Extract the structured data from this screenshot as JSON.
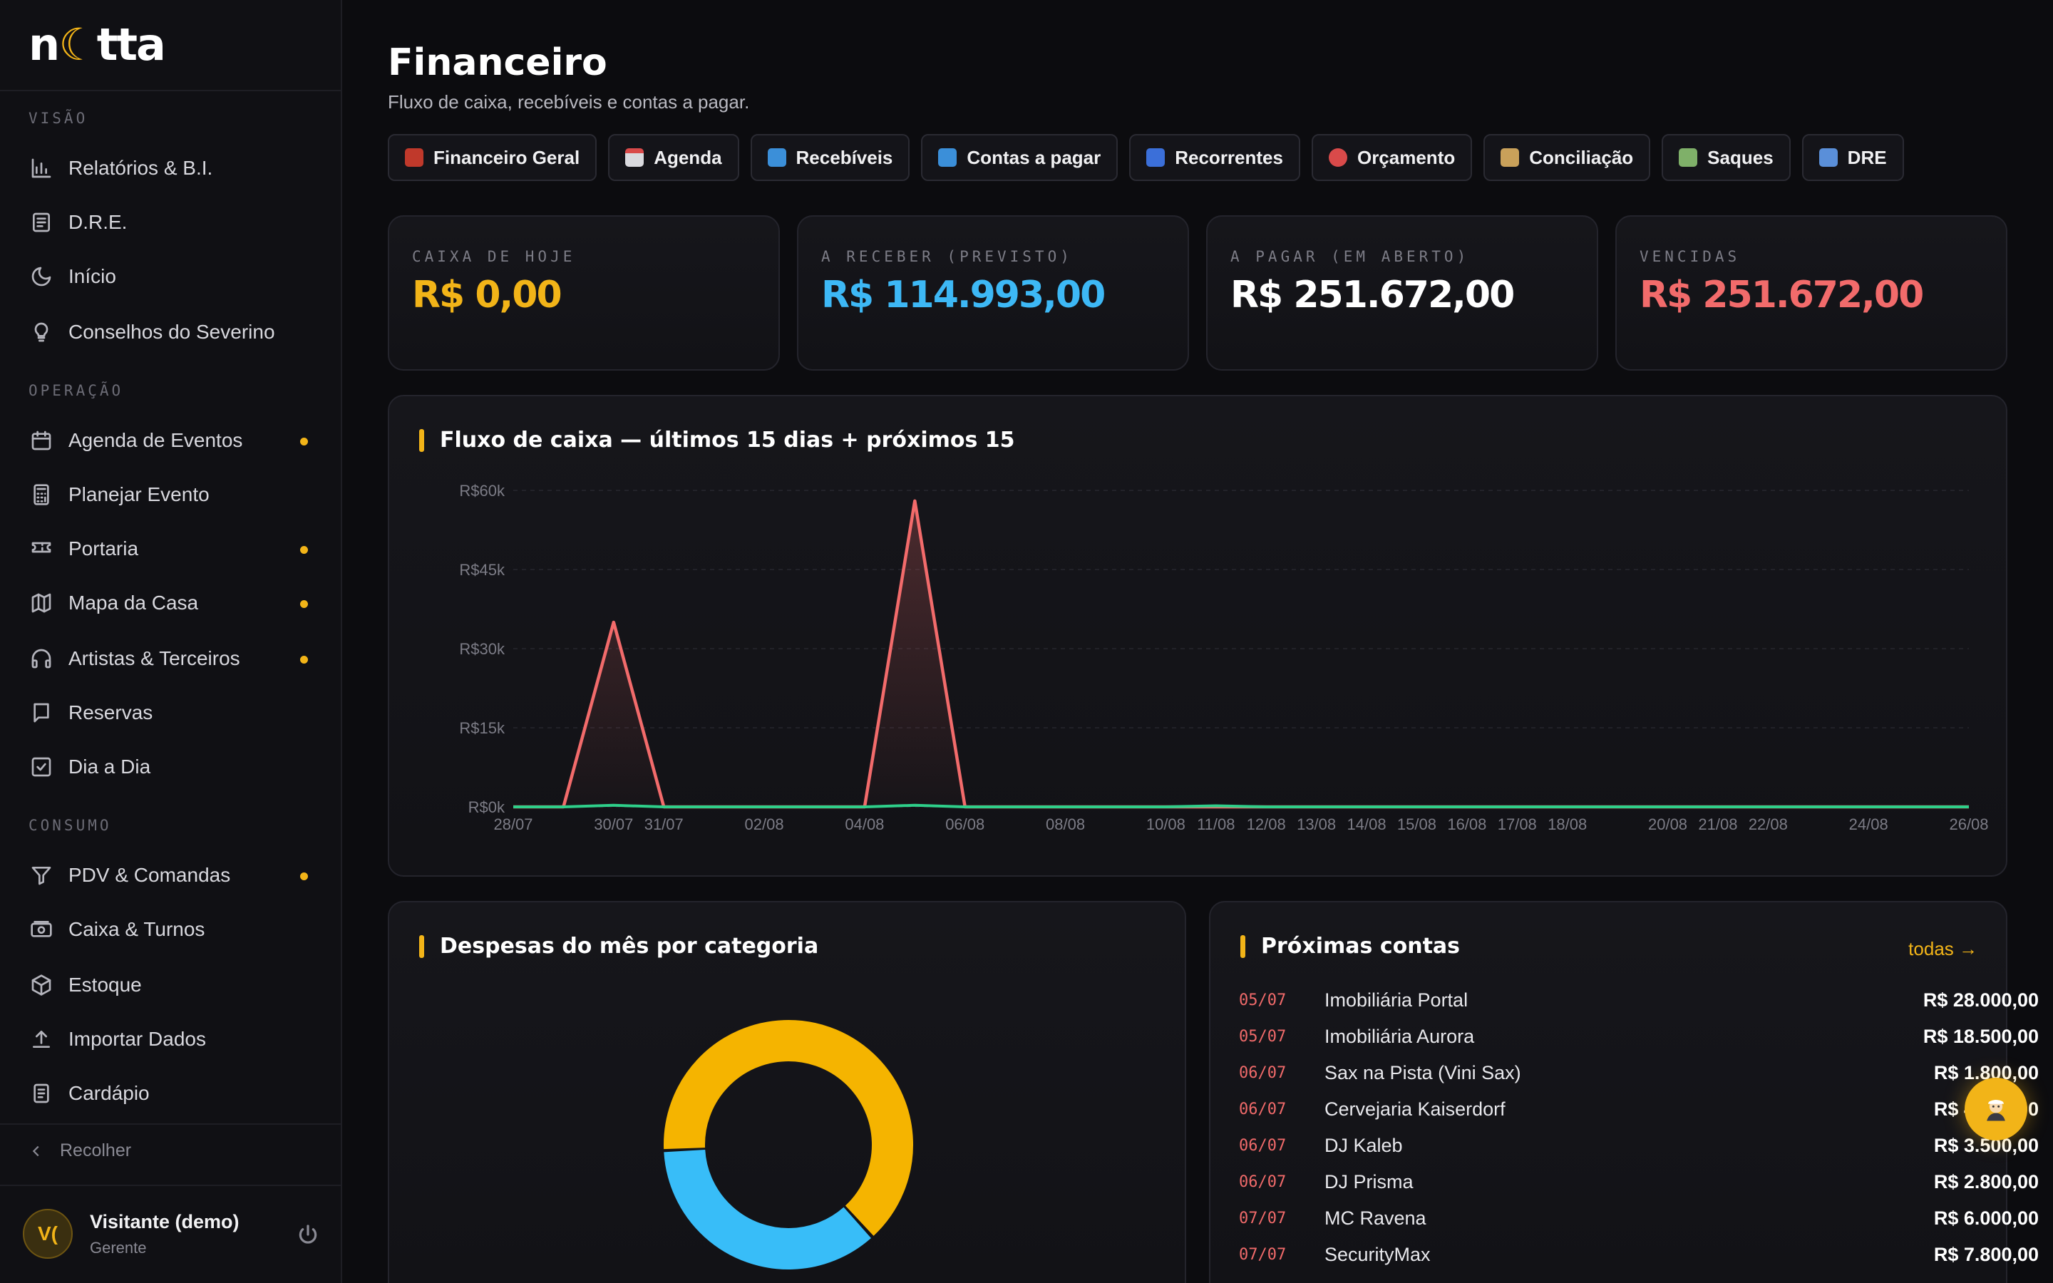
{
  "app": {
    "logo_left": "n",
    "logo_moon": "☾",
    "logo_right": "tta"
  },
  "sidebar": {
    "sections": [
      {
        "label": "VISÃO"
      },
      {
        "label": "OPERAÇÃO"
      },
      {
        "label": "CONSUMO"
      }
    ],
    "items": [
      {
        "label": "Relatórios & B.I.",
        "icon": "bar-chart-icon"
      },
      {
        "label": "D.R.E.",
        "icon": "document-icon"
      },
      {
        "label": "Início",
        "icon": "moon-icon"
      },
      {
        "label": "Conselhos do Severino",
        "icon": "lightbulb-icon"
      },
      {
        "label": "Agenda de Eventos",
        "icon": "calendar-icon",
        "badge": true
      },
      {
        "label": "Planejar Evento",
        "icon": "calculator-icon"
      },
      {
        "label": "Portaria",
        "icon": "ticket-icon",
        "badge": true
      },
      {
        "label": "Mapa da Casa",
        "icon": "map-icon",
        "badge": true
      },
      {
        "label": "Artistas & Terceiros",
        "icon": "headphones-icon",
        "badge": true
      },
      {
        "label": "Reservas",
        "icon": "message-icon"
      },
      {
        "label": "Dia a Dia",
        "icon": "check-square-icon"
      },
      {
        "label": "PDV & Comandas",
        "icon": "filter-icon",
        "badge": true
      },
      {
        "label": "Caixa & Turnos",
        "icon": "cash-icon"
      },
      {
        "label": "Estoque",
        "icon": "box-icon"
      },
      {
        "label": "Importar Dados",
        "icon": "upload-icon"
      },
      {
        "label": "Cardápio",
        "icon": "menu-book-icon"
      }
    ],
    "collapse_label": "Recolher",
    "user": {
      "initials": "V(",
      "name": "Visitante (demo)",
      "role": "Gerente"
    }
  },
  "header": {
    "title": "Financeiro",
    "subtitle": "Fluxo de caixa, recebíveis e contas a pagar."
  },
  "tabs": [
    {
      "label": "Financeiro Geral",
      "icon": "abacus-icon",
      "color": "#c0392b"
    },
    {
      "label": "Agenda",
      "icon": "calendar-icon",
      "color": "#d9d9de"
    },
    {
      "label": "Recebíveis",
      "icon": "inbox-tray-icon",
      "color": "#3b8fd9"
    },
    {
      "label": "Contas a pagar",
      "icon": "outbox-tray-icon",
      "color": "#3b8fd9"
    },
    {
      "label": "Recorrentes",
      "icon": "repeat-icon",
      "color": "#3b6fd9"
    },
    {
      "label": "Orçamento",
      "icon": "target-icon",
      "color": "#d94a4a"
    },
    {
      "label": "Conciliação",
      "icon": "bank-icon",
      "color": "#c9a15a"
    },
    {
      "label": "Saques",
      "icon": "money-wings-icon",
      "color": "#7fb069"
    },
    {
      "label": "DRE",
      "icon": "bar-chart-icon",
      "color": "#5a8fd9"
    }
  ],
  "kpis": [
    {
      "label": "CAIXA DE HOJE",
      "value": "R$ 0,00",
      "color": "#f2b418"
    },
    {
      "label": "A RECEBER (PREVISTO)",
      "value": "R$ 114.993,00",
      "color": "#3db8f5"
    },
    {
      "label": "A PAGAR (EM ABERTO)",
      "value": "R$ 251.672,00",
      "color": "#ffffff"
    },
    {
      "label": "VENCIDAS",
      "value": "R$ 251.672,00",
      "color": "#f26b6b"
    }
  ],
  "cashflow": {
    "title": "Fluxo de caixa — últimos 15 dias + próximos 15"
  },
  "chart_data": [
    {
      "type": "line",
      "title": "Fluxo de caixa — últimos 15 dias + próximos 15",
      "ylim": [
        0,
        60000
      ],
      "y_ticks": [
        "R$0k",
        "R$15k",
        "R$30k",
        "R$45k",
        "R$60k"
      ],
      "x_ticks": [
        "28/07",
        "30/07",
        "31/07",
        "02/08",
        "04/08",
        "06/08",
        "08/08",
        "10/08",
        "11/08",
        "12/08",
        "13/08",
        "14/08",
        "15/08",
        "16/08",
        "17/08",
        "18/08",
        "20/08",
        "21/08",
        "22/08",
        "24/08",
        "26/08"
      ],
      "x": [
        "28/07",
        "29/07",
        "30/07",
        "31/07",
        "01/08",
        "02/08",
        "03/08",
        "04/08",
        "05/08",
        "06/08",
        "07/08",
        "08/08",
        "09/08",
        "10/08",
        "11/08",
        "12/08",
        "13/08",
        "14/08",
        "15/08",
        "16/08",
        "17/08",
        "18/08",
        "19/08",
        "20/08",
        "21/08",
        "22/08",
        "23/08",
        "24/08",
        "25/08",
        "26/08"
      ],
      "grid": true,
      "series": [
        {
          "color": "#f26b6b",
          "values": [
            0,
            0,
            35000,
            0,
            0,
            0,
            0,
            0,
            58000,
            0,
            0,
            0,
            0,
            0,
            0,
            0,
            0,
            0,
            0,
            0,
            0,
            0,
            0,
            0,
            0,
            0,
            0,
            0,
            0,
            0
          ]
        },
        {
          "color": "#2ecf8a",
          "values": [
            0,
            0,
            300,
            0,
            0,
            0,
            0,
            0,
            300,
            0,
            0,
            0,
            0,
            0,
            200,
            0,
            0,
            0,
            0,
            0,
            0,
            0,
            0,
            0,
            0,
            0,
            0,
            0,
            0,
            0
          ]
        }
      ]
    },
    {
      "type": "pie",
      "title": "Despesas do mês por categoria",
      "slices": [
        {
          "value": 64,
          "color": "#f5b400"
        },
        {
          "value": 36,
          "color": "#38bdf8"
        }
      ]
    }
  ],
  "expenses": {
    "title": "Despesas do mês por categoria"
  },
  "bills": {
    "title": "Próximas contas",
    "see_all": "todas →",
    "items": [
      {
        "date": "05/07",
        "name": "Imobiliária Portal",
        "value": "R$ 28.000,00"
      },
      {
        "date": "05/07",
        "name": "Imobiliária Aurora",
        "value": "R$ 18.500,00"
      },
      {
        "date": "06/07",
        "name": "Sax na Pista (Vini Sax)",
        "value": "R$ 1.800,00"
      },
      {
        "date": "06/07",
        "name": "Cervejaria Kaiserdorf",
        "value": "R$ 4.960,00"
      },
      {
        "date": "06/07",
        "name": "DJ Kaleb",
        "value": "R$ 3.500,00"
      },
      {
        "date": "06/07",
        "name": "DJ Prisma",
        "value": "R$ 2.800,00"
      },
      {
        "date": "07/07",
        "name": "MC Ravena",
        "value": "R$ 6.000,00"
      },
      {
        "date": "07/07",
        "name": "SecurityMax",
        "value": "R$ 7.800,00"
      }
    ]
  },
  "assistant": {
    "icon": "assistant-icon"
  }
}
